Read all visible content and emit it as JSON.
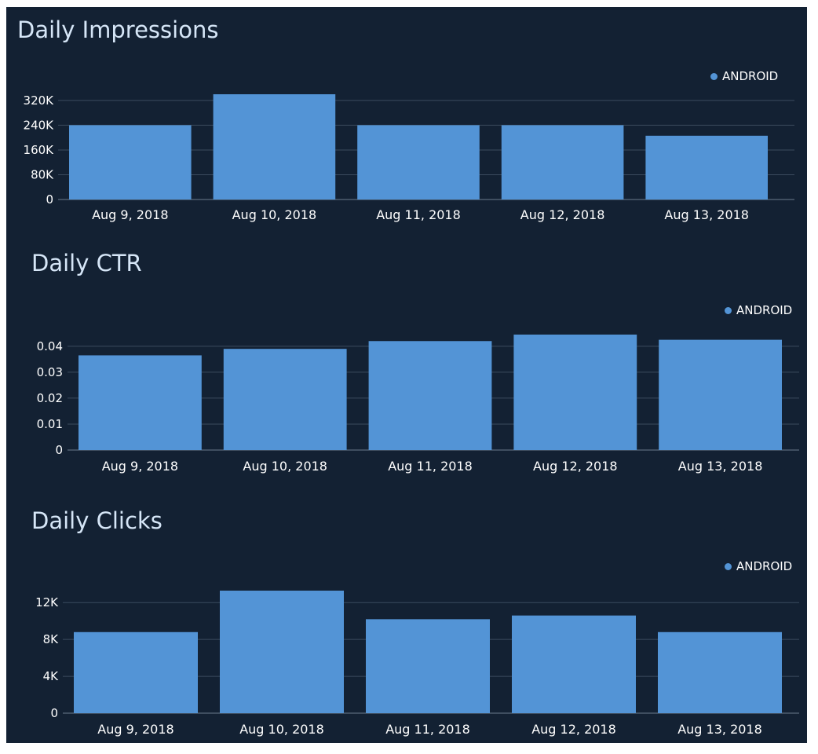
{
  "colors": {
    "background": "#132133",
    "bar": "#5394d6",
    "grid": "#3b4b5e",
    "text": "#ffffff",
    "title": "#d6e6f7"
  },
  "chart_data": [
    {
      "type": "bar",
      "title": "Daily Impressions",
      "categories": [
        "Aug 9, 2018",
        "Aug 10, 2018",
        "Aug 11, 2018",
        "Aug 12, 2018",
        "Aug 13, 2018"
      ],
      "series": [
        {
          "name": "ANDROID",
          "values": [
            240000,
            340000,
            240000,
            240000,
            206000
          ]
        }
      ],
      "ylim": [
        0,
        340000
      ],
      "yticks": [
        0,
        80000,
        160000,
        240000,
        320000
      ],
      "ytick_labels": [
        "0",
        "80K",
        "160K",
        "240K",
        "320K"
      ],
      "xlabel": "",
      "ylabel": "",
      "grid": true,
      "legend": "top-right"
    },
    {
      "type": "bar",
      "title": "Daily CTR",
      "categories": [
        "Aug 9, 2018",
        "Aug 10, 2018",
        "Aug 11, 2018",
        "Aug 12, 2018",
        "Aug 13, 2018"
      ],
      "series": [
        {
          "name": "ANDROID",
          "values": [
            0.0365,
            0.039,
            0.042,
            0.0445,
            0.0425
          ]
        }
      ],
      "ylim": [
        0,
        0.0445
      ],
      "yticks": [
        0,
        0.01,
        0.02,
        0.03,
        0.04
      ],
      "ytick_labels": [
        "0",
        "0.01",
        "0.02",
        "0.03",
        "0.04"
      ],
      "xlabel": "",
      "ylabel": "",
      "grid": true,
      "legend": "top-right"
    },
    {
      "type": "bar",
      "title": "Daily Clicks",
      "categories": [
        "Aug 9, 2018",
        "Aug 10, 2018",
        "Aug 11, 2018",
        "Aug 12, 2018",
        "Aug 13, 2018"
      ],
      "series": [
        {
          "name": "ANDROID",
          "values": [
            8800,
            13300,
            10200,
            10600,
            8800
          ]
        }
      ],
      "ylim": [
        0,
        13300
      ],
      "yticks": [
        0,
        4000,
        8000,
        12000
      ],
      "ytick_labels": [
        "0",
        "4K",
        "8K",
        "12K"
      ],
      "xlabel": "",
      "ylabel": "",
      "grid": true,
      "legend": "top-right"
    }
  ]
}
